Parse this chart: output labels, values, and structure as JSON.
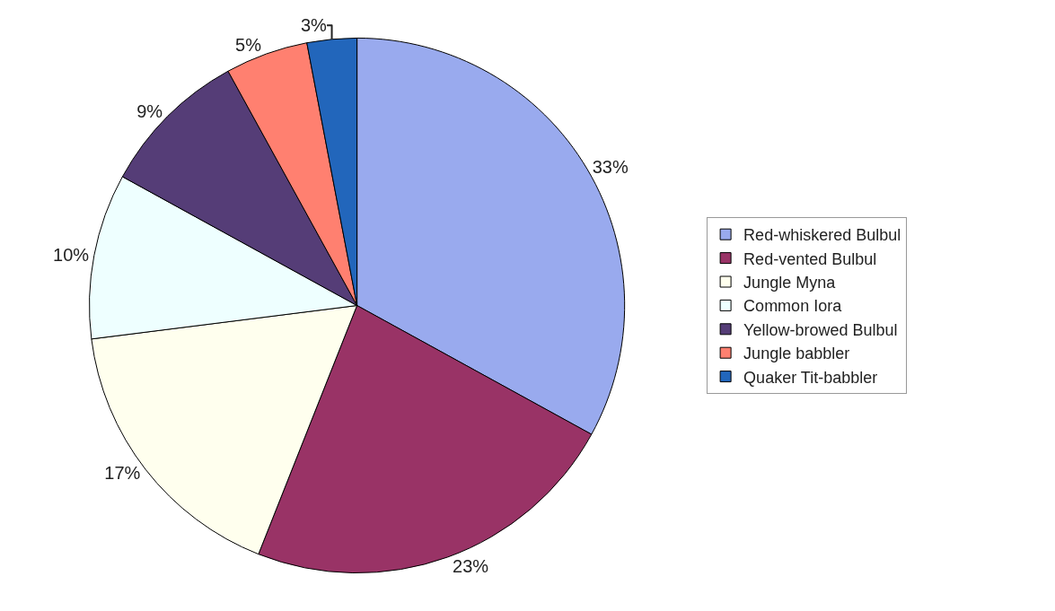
{
  "chart_data": {
    "type": "pie",
    "categories": [
      "Red-whiskered Bulbul",
      "Red-vented Bulbul",
      "Jungle Myna",
      "Common Iora",
      "Yellow-browed Bulbul",
      "Jungle babbler",
      "Quaker Tit-babbler"
    ],
    "values": [
      33,
      23,
      17,
      10,
      9,
      5,
      3
    ],
    "colors": [
      "#99aaee",
      "#993366",
      "#ffffee",
      "#eeffff",
      "#553d77",
      "#ff8070",
      "#2266bb"
    ],
    "value_labels": [
      "33%",
      "23%",
      "17%",
      "10%",
      "9%",
      "5%",
      "3%"
    ],
    "legend": "right"
  }
}
